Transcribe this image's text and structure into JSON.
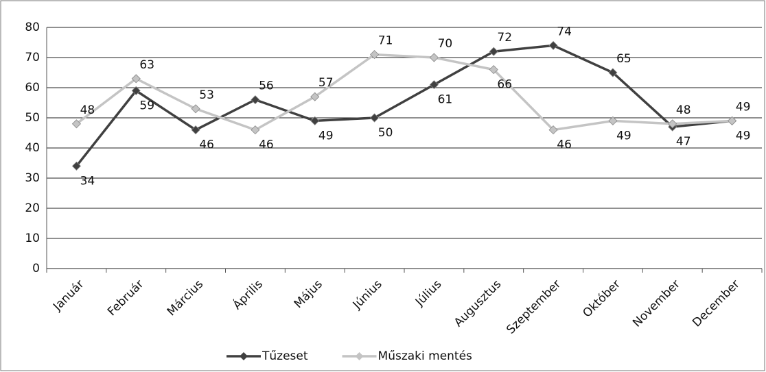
{
  "chart_data": {
    "type": "line",
    "categories": [
      "Január",
      "Február",
      "Március",
      "Április",
      "Május",
      "Június",
      "Július",
      "Augusztus",
      "Szeptember",
      "Október",
      "November",
      "December"
    ],
    "series": [
      {
        "name": "Tűzeset",
        "color": "#404040",
        "values": [
          34,
          59,
          46,
          56,
          49,
          50,
          61,
          72,
          74,
          65,
          47,
          49
        ]
      },
      {
        "name": "Műszaki mentés",
        "color": "#c4c4c4",
        "values": [
          48,
          63,
          53,
          46,
          57,
          71,
          70,
          66,
          46,
          49,
          48,
          49
        ]
      }
    ],
    "ylim": [
      0,
      80
    ],
    "yticks": [
      0,
      10,
      20,
      30,
      40,
      50,
      60,
      70,
      80
    ],
    "grid": true,
    "legend": "bottom"
  }
}
